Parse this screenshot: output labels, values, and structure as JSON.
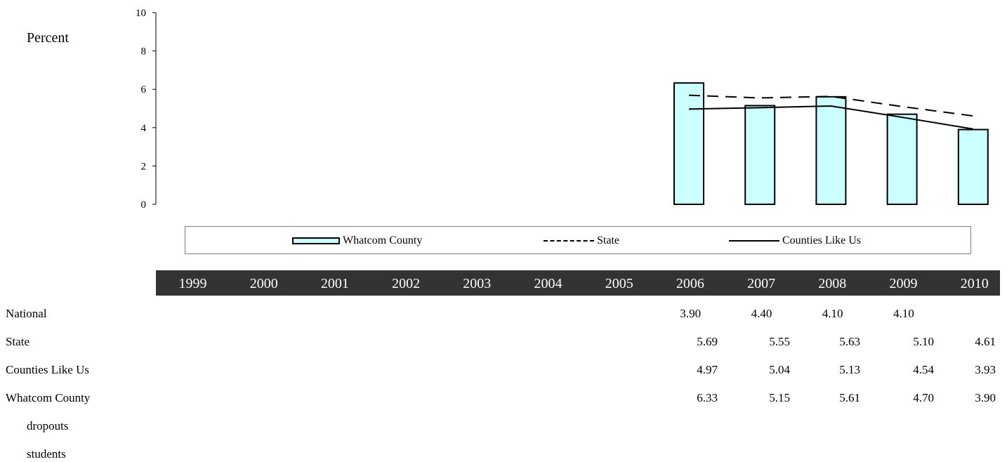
{
  "chart_data": {
    "type": "bar",
    "categories": [
      "1999",
      "2000",
      "2001",
      "2002",
      "2003",
      "2004",
      "2005",
      "2006",
      "2007",
      "2008",
      "2009",
      "2010"
    ],
    "ylabel": "Percent",
    "ylim": [
      0,
      10
    ],
    "yticks": [
      "0",
      "2",
      "4",
      "6",
      "8",
      "10"
    ],
    "grid": false,
    "legend_position": "bottom",
    "series": [
      {
        "name": "Whatcom County",
        "kind": "bar",
        "color": "#ccffff",
        "values": [
          null,
          null,
          null,
          null,
          null,
          null,
          null,
          6.33,
          5.15,
          5.61,
          4.7,
          3.9
        ]
      },
      {
        "name": "State",
        "kind": "line-dashed",
        "color": "#000000",
        "values": [
          null,
          null,
          null,
          null,
          null,
          null,
          null,
          5.69,
          5.55,
          5.63,
          5.1,
          4.61
        ]
      },
      {
        "name": "Counties Like Us",
        "kind": "line-solid",
        "color": "#000000",
        "values": [
          null,
          null,
          null,
          null,
          null,
          null,
          null,
          4.97,
          5.04,
          5.13,
          4.54,
          3.93
        ]
      }
    ]
  },
  "legend": {
    "whatcom": "Whatcom County",
    "state": "State",
    "counties": "Counties Like Us"
  },
  "table": {
    "years": [
      "1999",
      "2000",
      "2001",
      "2002",
      "2003",
      "2004",
      "2005",
      "2006",
      "2007",
      "2008",
      "2009",
      "2010"
    ],
    "rows": [
      {
        "label": "National",
        "values": [
          "",
          "",
          "",
          "",
          "",
          "",
          "",
          "3.90",
          "4.40",
          "4.10",
          "4.10",
          ""
        ]
      },
      {
        "label": "State",
        "values": [
          "",
          "",
          "",
          "",
          "",
          "",
          "",
          "5.69",
          "5.55",
          "5.63",
          "5.10",
          "4.61"
        ]
      },
      {
        "label": "Counties Like Us",
        "values": [
          "",
          "",
          "",
          "",
          "",
          "",
          "",
          "4.97",
          "5.04",
          "5.13",
          "4.54",
          "3.93"
        ]
      },
      {
        "label": "Whatcom County",
        "values": [
          "",
          "",
          "",
          "",
          "",
          "",
          "",
          "6.33",
          "5.15",
          "5.61",
          "4.70",
          "3.90"
        ]
      }
    ],
    "sub_rows": [
      "dropouts",
      "students"
    ]
  }
}
